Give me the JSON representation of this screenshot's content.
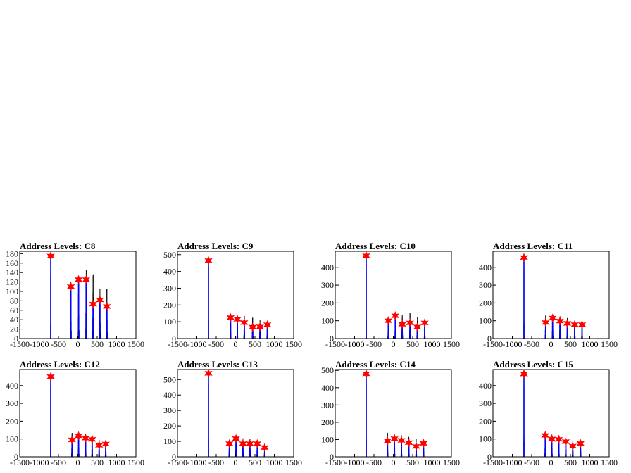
{
  "chart_data": [
    {
      "type": "histogram",
      "title": "Address Levels: C8",
      "xlim": [
        -1500,
        1500
      ],
      "ylim": [
        0,
        185
      ],
      "xticks": [
        "-1500",
        "-1000",
        "-500",
        "0",
        "500",
        "1000",
        "1500"
      ],
      "yticks": [
        "0",
        "20",
        "40",
        "60",
        "80",
        "100",
        "120",
        "140",
        "160",
        "180"
      ],
      "peaks": [
        {
          "x": -700,
          "y": 175,
          "black": 170
        },
        {
          "x": -180,
          "y": 110,
          "black": 125
        },
        {
          "x": 20,
          "y": 125,
          "black": 138
        },
        {
          "x": 215,
          "y": 125,
          "black": 152
        },
        {
          "x": 395,
          "y": 73,
          "black": 142
        },
        {
          "x": 570,
          "y": 82,
          "black": 110
        },
        {
          "x": 750,
          "y": 68,
          "black": 110
        }
      ]
    },
    {
      "type": "histogram",
      "title": "Address Levels: C9",
      "xlim": [
        -1500,
        1500
      ],
      "ylim": [
        0,
        520
      ],
      "xticks": [
        "-1500",
        "-1000",
        "-500",
        "0",
        "500",
        "1000",
        "1500"
      ],
      "yticks": [
        "0",
        "100",
        "200",
        "300",
        "400",
        "500"
      ],
      "peaks": [
        {
          "x": -700,
          "y": 465,
          "black": 500
        },
        {
          "x": -130,
          "y": 125,
          "black": 135
        },
        {
          "x": 45,
          "y": 115,
          "black": 135
        },
        {
          "x": 225,
          "y": 95,
          "black": 140
        },
        {
          "x": 440,
          "y": 68,
          "black": 130
        },
        {
          "x": 630,
          "y": 70,
          "black": 115
        },
        {
          "x": 820,
          "y": 82,
          "black": 90
        }
      ]
    },
    {
      "type": "histogram",
      "title": "Address Levels: C10",
      "xlim": [
        -1500,
        1500
      ],
      "ylim": [
        0,
        490
      ],
      "xticks": [
        "-1500",
        "-1000",
        "-500",
        "0",
        "500",
        "1000",
        "1500"
      ],
      "yticks": [
        "0",
        "100",
        "200",
        "300",
        "400"
      ],
      "peaks": [
        {
          "x": -700,
          "y": 465,
          "black": 480
        },
        {
          "x": -130,
          "y": 100,
          "black": 120
        },
        {
          "x": 50,
          "y": 128,
          "black": 140
        },
        {
          "x": 230,
          "y": 80,
          "black": 140
        },
        {
          "x": 430,
          "y": 88,
          "black": 152
        },
        {
          "x": 620,
          "y": 65,
          "black": 125
        },
        {
          "x": 810,
          "y": 88,
          "black": 100
        }
      ]
    },
    {
      "type": "histogram",
      "title": "Address Levels: C11",
      "xlim": [
        -1500,
        1500
      ],
      "ylim": [
        0,
        490
      ],
      "xticks": [
        "-1500",
        "-1000",
        "-500",
        "0",
        "500",
        "1000",
        "1500"
      ],
      "yticks": [
        "0",
        "100",
        "200",
        "300",
        "400"
      ],
      "peaks": [
        {
          "x": -700,
          "y": 455,
          "black": 460
        },
        {
          "x": -140,
          "y": 90,
          "black": 140
        },
        {
          "x": 40,
          "y": 115,
          "black": 130
        },
        {
          "x": 230,
          "y": 98,
          "black": 130
        },
        {
          "x": 420,
          "y": 85,
          "black": 120
        },
        {
          "x": 610,
          "y": 78,
          "black": 105
        },
        {
          "x": 800,
          "y": 78,
          "black": 90
        }
      ]
    },
    {
      "type": "histogram",
      "title": "Address Levels: C12",
      "xlim": [
        -1500,
        1500
      ],
      "ylim": [
        0,
        490
      ],
      "xticks": [
        "-1500",
        "-1000",
        "-500",
        "0",
        "500",
        "1000",
        "1500"
      ],
      "yticks": [
        "0",
        "100",
        "200",
        "300",
        "400"
      ],
      "peaks": [
        {
          "x": -700,
          "y": 450,
          "black": 490
        },
        {
          "x": -150,
          "y": 95,
          "black": 140
        },
        {
          "x": 20,
          "y": 118,
          "black": 135
        },
        {
          "x": 200,
          "y": 105,
          "black": 130
        },
        {
          "x": 370,
          "y": 98,
          "black": 120
        },
        {
          "x": 550,
          "y": 65,
          "black": 100
        },
        {
          "x": 720,
          "y": 72,
          "black": 90
        }
      ]
    },
    {
      "type": "histogram",
      "title": "Address Levels: C13",
      "xlim": [
        -1500,
        1500
      ],
      "ylim": [
        0,
        565
      ],
      "xticks": [
        "-1500",
        "-1000",
        "-500",
        "0",
        "500",
        "1000",
        "1500"
      ],
      "yticks": [
        "0",
        "100",
        "200",
        "300",
        "400",
        "500"
      ],
      "peaks": [
        {
          "x": -700,
          "y": 540,
          "black": 545
        },
        {
          "x": -160,
          "y": 85,
          "black": 100
        },
        {
          "x": 10,
          "y": 118,
          "black": 130
        },
        {
          "x": 190,
          "y": 85,
          "black": 125
        },
        {
          "x": 370,
          "y": 85,
          "black": 120
        },
        {
          "x": 560,
          "y": 85,
          "black": 105
        },
        {
          "x": 750,
          "y": 60,
          "black": 85
        }
      ]
    },
    {
      "type": "histogram",
      "title": "Address Levels: C14",
      "xlim": [
        -1500,
        1500
      ],
      "ylim": [
        0,
        505
      ],
      "xticks": [
        "-1500",
        "-1000",
        "-500",
        "0",
        "500",
        "1000",
        "1500"
      ],
      "yticks": [
        "0",
        "100",
        "200",
        "300",
        "400",
        "500"
      ],
      "peaks": [
        {
          "x": -700,
          "y": 480,
          "black": 490
        },
        {
          "x": -150,
          "y": 92,
          "black": 145
        },
        {
          "x": 30,
          "y": 105,
          "black": 135
        },
        {
          "x": 210,
          "y": 95,
          "black": 130
        },
        {
          "x": 400,
          "y": 82,
          "black": 120
        },
        {
          "x": 590,
          "y": 60,
          "black": 110
        },
        {
          "x": 780,
          "y": 78,
          "black": 90
        }
      ]
    },
    {
      "type": "histogram",
      "title": "Address Levels: C15",
      "xlim": [
        -1500,
        1500
      ],
      "ylim": [
        0,
        490
      ],
      "xticks": [
        "-1500",
        "-1000",
        "-500",
        "0",
        "500",
        "1000",
        "1500"
      ],
      "yticks": [
        "0",
        "100",
        "200",
        "300",
        "400"
      ],
      "peaks": [
        {
          "x": -700,
          "y": 465,
          "black": 470
        },
        {
          "x": -150,
          "y": 120,
          "black": 135
        },
        {
          "x": 20,
          "y": 100,
          "black": 130
        },
        {
          "x": 200,
          "y": 98,
          "black": 125
        },
        {
          "x": 380,
          "y": 85,
          "black": 115
        },
        {
          "x": 560,
          "y": 60,
          "black": 100
        },
        {
          "x": 760,
          "y": 75,
          "black": 90
        }
      ]
    }
  ],
  "colors": {
    "histogram": "#000000",
    "fit": "#0000ff",
    "marker": "#ff0000",
    "frame": "#000000"
  }
}
